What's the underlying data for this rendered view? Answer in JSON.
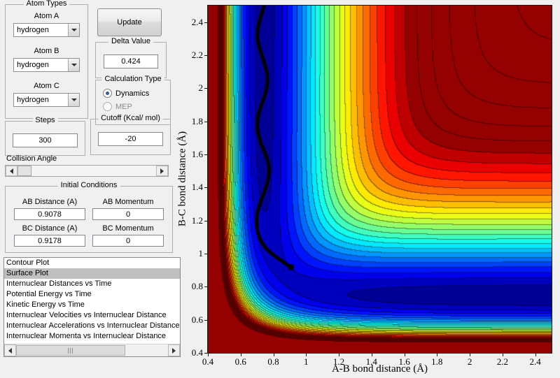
{
  "app": {
    "bg": "#f0f0f0"
  },
  "atom_types": {
    "title": "Atom Types",
    "rows": [
      {
        "label": "Atom A",
        "value": "hydrogen"
      },
      {
        "label": "Atom B",
        "value": "hydrogen"
      },
      {
        "label": "Atom C",
        "value": "hydrogen"
      }
    ]
  },
  "update": {
    "label": "Update"
  },
  "delta": {
    "title": "Delta Value",
    "value": "0.424"
  },
  "calculation": {
    "title": "Calculation Type",
    "options": [
      {
        "label": "Dynamics",
        "selected": true,
        "enabled": true
      },
      {
        "label": "MEP",
        "selected": false,
        "enabled": false
      }
    ]
  },
  "steps": {
    "title": "Steps",
    "value": "300"
  },
  "cutoff": {
    "title": "Cutoff (Kcal/ mol)",
    "value": "-20"
  },
  "collision": {
    "label": "Collision Angle"
  },
  "initial_conditions": {
    "title": "Initial Conditions",
    "fields": [
      {
        "label": "AB Distance (A)",
        "value": "0.9078"
      },
      {
        "label": "AB Momentum",
        "value": "0"
      },
      {
        "label": "BC Distance (A)",
        "value": "0.9178"
      },
      {
        "label": "BC Momentum",
        "value": "0"
      }
    ]
  },
  "plot_list": {
    "selected_index": 1,
    "items": [
      "Contour Plot",
      "Surface Plot",
      "Internuclear Distances vs Time",
      "Potential Energy vs Time",
      "Kinetic Energy vs Time",
      "Internuclear Velocities vs Internuclear Distance",
      "Internuclear Accelerations vs Internuclear Distance",
      "Internuclear Momenta vs Internuclear Distance"
    ]
  },
  "chart_data": {
    "type": "heatmap",
    "title": "",
    "xlabel": "A-B bond distance (Å)",
    "ylabel": "B-C bond distance (Å)",
    "xlim": [
      0.4,
      2.5
    ],
    "ylim": [
      0.4,
      2.5
    ],
    "xtick_values": [
      0.4,
      0.6,
      0.8,
      1.0,
      1.2,
      1.4,
      1.6,
      1.8,
      2.0,
      2.2,
      2.4
    ],
    "xtick_labels": [
      "0.4",
      "0.6",
      "0.8",
      "1",
      "1.2",
      "1.4",
      "1.6",
      "1.8",
      "2",
      "2.2",
      "2.4"
    ],
    "ytick_values": [
      0.4,
      0.6,
      0.8,
      1.0,
      1.2,
      1.4,
      1.6,
      1.8,
      2.0,
      2.2,
      2.4
    ],
    "ytick_labels": [
      "0.4",
      "0.6",
      "0.8",
      "1",
      "1.2",
      "1.4",
      "1.6",
      "1.8",
      "2",
      "2.2",
      "2.4"
    ],
    "colormap": "jet",
    "surface": {
      "model": "LEPS potential energy surface, collinear A-B-C reaction",
      "units": "kcal/mol",
      "D": 109.46,
      "alpha": 2.5,
      "r0": 0.742,
      "sato": 0.1386,
      "vmin": -110.5,
      "vmax": -20,
      "bands": 24
    },
    "trajectory": {
      "color": "#000000",
      "line_width": 5,
      "start": [
        0.9078,
        0.9178
      ],
      "points": [
        [
          0.9078,
          0.9178
        ],
        [
          0.86,
          0.95
        ],
        [
          0.8,
          0.99
        ],
        [
          0.745,
          1.04
        ],
        [
          0.71,
          1.1
        ],
        [
          0.695,
          1.17
        ],
        [
          0.7,
          1.245
        ],
        [
          0.72,
          1.315
        ],
        [
          0.75,
          1.385
        ],
        [
          0.77,
          1.455
        ],
        [
          0.775,
          1.525
        ],
        [
          0.755,
          1.595
        ],
        [
          0.725,
          1.66
        ],
        [
          0.705,
          1.73
        ],
        [
          0.7,
          1.8
        ],
        [
          0.715,
          1.87
        ],
        [
          0.74,
          1.935
        ],
        [
          0.76,
          2.0
        ],
        [
          0.765,
          2.07
        ],
        [
          0.75,
          2.14
        ],
        [
          0.725,
          2.21
        ],
        [
          0.705,
          2.275
        ],
        [
          0.7,
          2.34
        ],
        [
          0.715,
          2.41
        ],
        [
          0.735,
          2.47
        ],
        [
          0.75,
          2.53
        ]
      ]
    }
  }
}
